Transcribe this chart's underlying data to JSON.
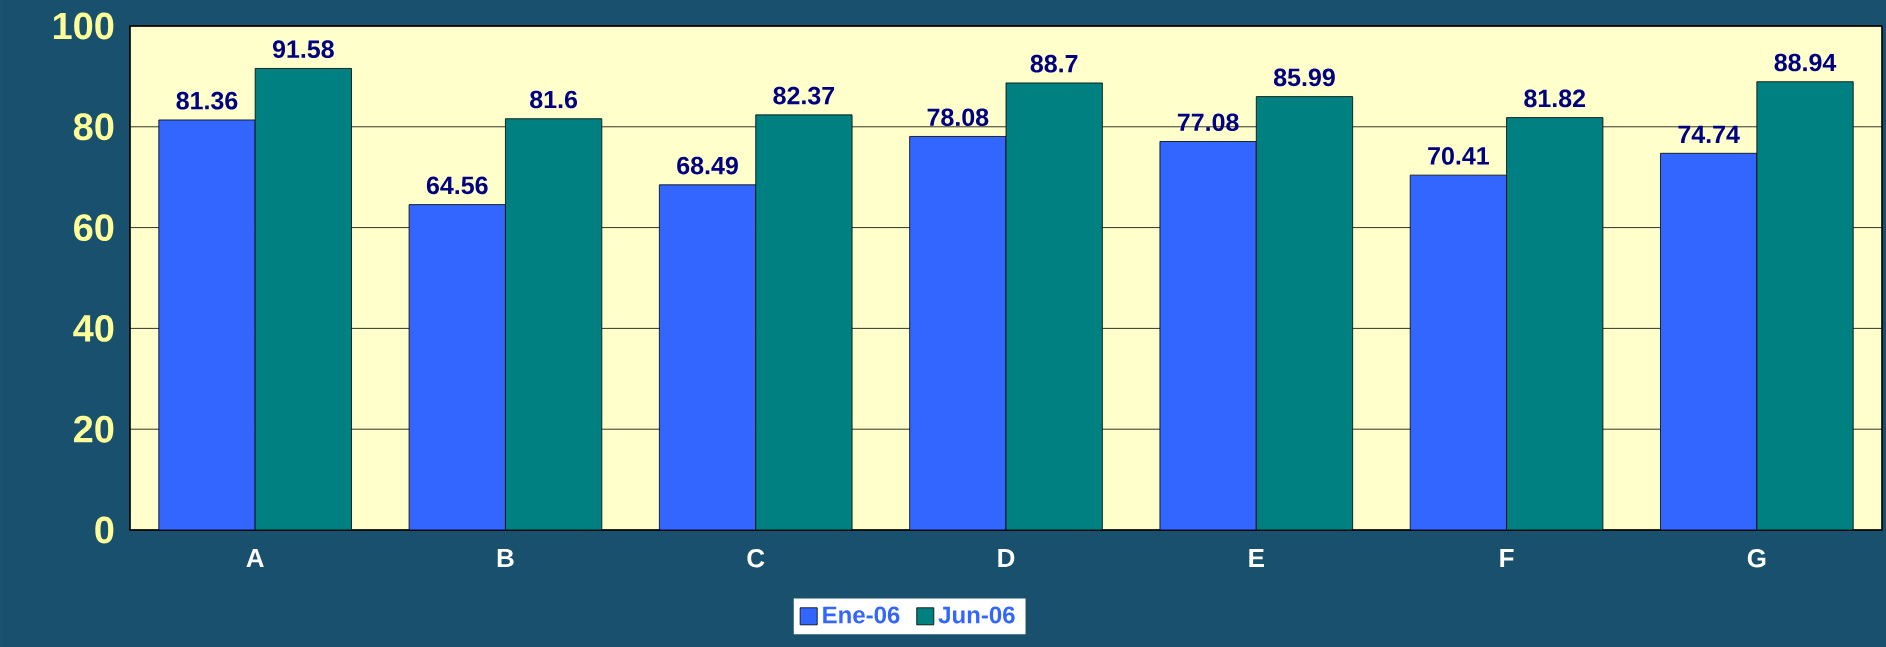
{
  "chart_data": {
    "type": "bar",
    "categories": [
      "A",
      "B",
      "C",
      "D",
      "E",
      "F",
      "G"
    ],
    "series": [
      {
        "name": "Ene-06",
        "color": "#3366ff",
        "values": [
          81.36,
          64.56,
          68.49,
          78.08,
          77.08,
          70.41,
          74.74
        ]
      },
      {
        "name": "Jun-06",
        "color": "#008080",
        "values": [
          91.58,
          81.6,
          82.37,
          88.7,
          85.99,
          81.82,
          88.94
        ]
      }
    ],
    "ylim": [
      0,
      100
    ],
    "yticks": [
      0,
      20,
      40,
      60,
      80,
      100
    ],
    "grid": "y",
    "legend": "bottom",
    "data_labels": true
  }
}
